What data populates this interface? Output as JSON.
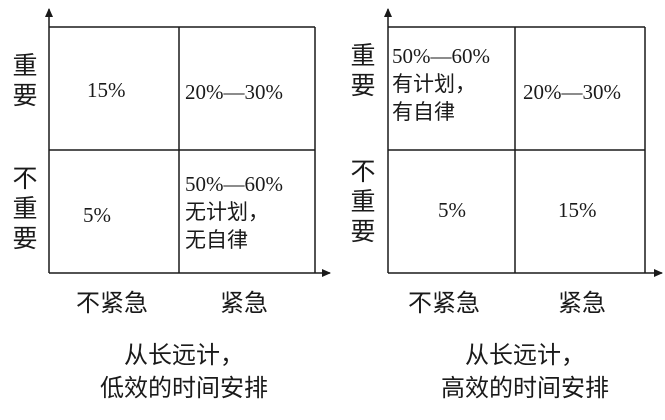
{
  "left": {
    "y_labels": {
      "top": "重要",
      "bottom": "不重要"
    },
    "x_labels": {
      "left": "不紧急",
      "right": "紧急"
    },
    "cells": {
      "top_left": [
        "15%"
      ],
      "top_right": [
        "20%—30%"
      ],
      "bottom_left": [
        "5%"
      ],
      "bottom_right": [
        "50%—60%",
        "无计划，",
        "无自律"
      ]
    },
    "caption": [
      "从长远计，",
      "低效的时间安排"
    ]
  },
  "right": {
    "y_labels": {
      "top": "重要",
      "bottom": "不重要"
    },
    "x_labels": {
      "left": "不紧急",
      "right": "紧急"
    },
    "cells": {
      "top_left": [
        "50%—60%",
        "有计划，",
        "有自律"
      ],
      "top_right": [
        "20%—30%"
      ],
      "bottom_left": [
        "5%"
      ],
      "bottom_right": [
        "15%"
      ]
    },
    "caption": [
      "从长远计，",
      "高效的时间安排"
    ]
  }
}
